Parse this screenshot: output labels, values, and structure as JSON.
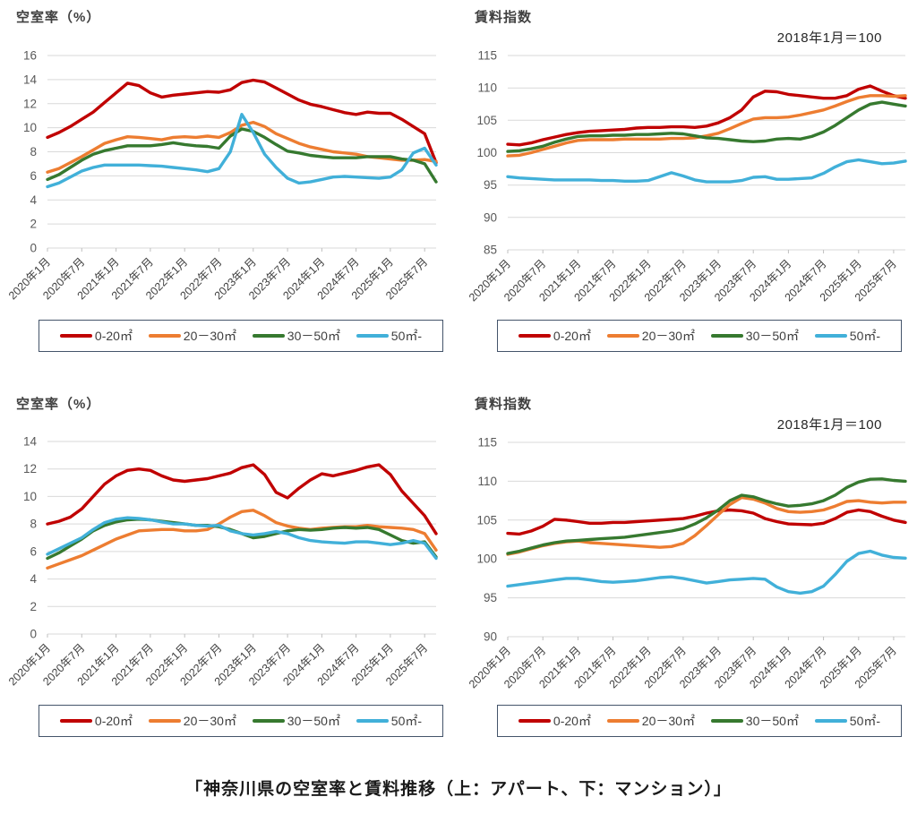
{
  "caption": "「神奈川県の空室率と賃料推移（上：アパート、下：マンション）」",
  "legend": {
    "items": [
      {
        "key": "size-0-20",
        "label": "0-20㎡",
        "color": "#c00000"
      },
      {
        "key": "size-20-30",
        "label": "20－30㎡",
        "color": "#ed7d31"
      },
      {
        "key": "size-30-50",
        "label": "30－50㎡",
        "color": "#36792f"
      },
      {
        "key": "size-50plus",
        "label": "50㎡-",
        "color": "#41b0d9"
      }
    ]
  },
  "x_tick_labels": [
    "2020年1月",
    "2020年7月",
    "2021年1月",
    "2021年7月",
    "2022年1月",
    "2022年7月",
    "2023年1月",
    "2023年7月",
    "2024年1月",
    "2024年7月",
    "2025年1月",
    "2025年7月"
  ],
  "x_sample_months": [
    "2020-01",
    "2020-03",
    "2020-05",
    "2020-07",
    "2020-09",
    "2020-11",
    "2021-01",
    "2021-03",
    "2021-05",
    "2021-07",
    "2021-09",
    "2021-11",
    "2022-01",
    "2022-03",
    "2022-05",
    "2022-07",
    "2022-09",
    "2022-11",
    "2023-01",
    "2023-03",
    "2023-05",
    "2023-07",
    "2023-09",
    "2023-11",
    "2024-01",
    "2024-03",
    "2024-05",
    "2024-07",
    "2024-09",
    "2024-11",
    "2025-01",
    "2025-03",
    "2025-05",
    "2025-07",
    "2025-09"
  ],
  "colors": {
    "grid": "#d9d9d9",
    "tick": "#bfbfbf",
    "y_label": "#595959",
    "x_label": "#404040"
  },
  "chart_data": [
    {
      "id": "apartment-vacancy",
      "panel": "top-left",
      "type": "line",
      "title": "空室率（%）",
      "annotation": "",
      "ylim": [
        0,
        16
      ],
      "yticks": [
        16,
        14,
        12,
        10,
        8,
        6,
        4,
        2,
        0
      ],
      "grid": true,
      "legend_position": "bottom",
      "series": [
        {
          "key": "size-0-20",
          "name": "0-20㎡",
          "color": "#c00000",
          "values": [
            9.2,
            9.6,
            10.1,
            10.7,
            11.3,
            12.1,
            12.9,
            13.7,
            13.5,
            12.9,
            12.55,
            12.7,
            12.8,
            12.9,
            13.0,
            12.95,
            13.15,
            13.75,
            13.95,
            13.8,
            13.3,
            12.8,
            12.3,
            11.95,
            11.75,
            11.5,
            11.25,
            11.1,
            11.3,
            11.2,
            11.2,
            10.7,
            10.1,
            9.5,
            7.1
          ]
        },
        {
          "key": "size-20-30",
          "name": "20－30㎡",
          "color": "#ed7d31",
          "values": [
            6.3,
            6.6,
            7.1,
            7.6,
            8.15,
            8.7,
            9.0,
            9.25,
            9.2,
            9.1,
            9.0,
            9.2,
            9.25,
            9.2,
            9.3,
            9.2,
            9.6,
            10.2,
            10.45,
            10.1,
            9.5,
            9.1,
            8.7,
            8.4,
            8.2,
            8.0,
            7.9,
            7.8,
            7.6,
            7.5,
            7.4,
            7.3,
            7.3,
            7.35,
            7.2
          ]
        },
        {
          "key": "size-30-50",
          "name": "30－50㎡",
          "color": "#36792f",
          "values": [
            5.7,
            6.1,
            6.7,
            7.3,
            7.8,
            8.1,
            8.3,
            8.5,
            8.5,
            8.5,
            8.6,
            8.75,
            8.6,
            8.5,
            8.45,
            8.3,
            9.3,
            9.9,
            9.7,
            9.2,
            8.6,
            8.05,
            7.9,
            7.7,
            7.6,
            7.5,
            7.5,
            7.5,
            7.6,
            7.6,
            7.6,
            7.4,
            7.3,
            7.0,
            5.5
          ]
        },
        {
          "key": "size-50plus",
          "name": "50㎡-",
          "color": "#41b0d9",
          "values": [
            5.1,
            5.4,
            5.9,
            6.4,
            6.7,
            6.9,
            6.9,
            6.9,
            6.9,
            6.85,
            6.8,
            6.7,
            6.6,
            6.5,
            6.35,
            6.6,
            8.0,
            11.1,
            9.6,
            7.8,
            6.7,
            5.8,
            5.4,
            5.5,
            5.7,
            5.9,
            5.95,
            5.9,
            5.85,
            5.8,
            5.9,
            6.5,
            7.9,
            8.3,
            6.9
          ]
        }
      ]
    },
    {
      "id": "apartment-rent",
      "panel": "top-right",
      "type": "line",
      "title": "賃料指数",
      "annotation": "2018年1月＝100",
      "ylim": [
        85,
        115
      ],
      "yticks": [
        115,
        110,
        105,
        100,
        95,
        90,
        85
      ],
      "grid": true,
      "legend_position": "bottom",
      "series": [
        {
          "key": "size-0-20",
          "name": "0-20㎡",
          "color": "#c00000",
          "values": [
            101.3,
            101.2,
            101.5,
            102.0,
            102.4,
            102.8,
            103.1,
            103.3,
            103.4,
            103.5,
            103.6,
            103.8,
            103.9,
            103.9,
            104.0,
            104.0,
            103.9,
            104.1,
            104.6,
            105.4,
            106.6,
            108.6,
            109.5,
            109.4,
            109.0,
            108.8,
            108.6,
            108.4,
            108.4,
            108.8,
            109.8,
            110.3,
            109.5,
            108.8,
            108.4
          ]
        },
        {
          "key": "size-20-30",
          "name": "20－30㎡",
          "color": "#ed7d31",
          "values": [
            99.5,
            99.6,
            100.0,
            100.5,
            101.0,
            101.5,
            101.9,
            102.0,
            102.0,
            102.0,
            102.1,
            102.1,
            102.1,
            102.1,
            102.2,
            102.2,
            102.3,
            102.6,
            103.0,
            103.7,
            104.5,
            105.2,
            105.4,
            105.4,
            105.5,
            105.8,
            106.2,
            106.6,
            107.2,
            107.9,
            108.5,
            108.8,
            108.8,
            108.7,
            108.8
          ]
        },
        {
          "key": "size-30-50",
          "name": "30－50㎡",
          "color": "#36792f",
          "values": [
            100.2,
            100.3,
            100.6,
            101.0,
            101.6,
            102.1,
            102.5,
            102.6,
            102.6,
            102.7,
            102.7,
            102.8,
            102.8,
            102.9,
            103.0,
            102.9,
            102.6,
            102.3,
            102.2,
            102.0,
            101.8,
            101.7,
            101.8,
            102.1,
            102.2,
            102.1,
            102.5,
            103.2,
            104.2,
            105.4,
            106.6,
            107.5,
            107.8,
            107.5,
            107.2
          ]
        },
        {
          "key": "size-50plus",
          "name": "50㎡-",
          "color": "#41b0d9",
          "values": [
            96.3,
            96.1,
            96.0,
            95.9,
            95.8,
            95.8,
            95.8,
            95.8,
            95.7,
            95.7,
            95.6,
            95.6,
            95.7,
            96.3,
            96.9,
            96.4,
            95.8,
            95.5,
            95.5,
            95.5,
            95.7,
            96.2,
            96.3,
            95.9,
            95.9,
            96.0,
            96.1,
            96.8,
            97.8,
            98.6,
            98.9,
            98.6,
            98.3,
            98.4,
            98.7
          ]
        }
      ]
    },
    {
      "id": "mansion-vacancy",
      "panel": "bottom-left",
      "type": "line",
      "title": "空室率（%）",
      "annotation": "",
      "ylim": [
        0,
        14
      ],
      "yticks": [
        14,
        12,
        10,
        8,
        6,
        4,
        2,
        0
      ],
      "grid": true,
      "legend_position": "bottom",
      "series": [
        {
          "key": "size-0-20",
          "name": "0-20㎡",
          "color": "#c00000",
          "values": [
            8.0,
            8.2,
            8.5,
            9.1,
            10.0,
            10.9,
            11.5,
            11.9,
            12.0,
            11.9,
            11.5,
            11.2,
            11.1,
            11.2,
            11.3,
            11.5,
            11.7,
            12.1,
            12.3,
            11.6,
            10.3,
            9.9,
            10.6,
            11.2,
            11.65,
            11.5,
            11.7,
            11.9,
            12.15,
            12.3,
            11.6,
            10.4,
            9.5,
            8.6,
            7.3
          ]
        },
        {
          "key": "size-20-30",
          "name": "20－30㎡",
          "color": "#ed7d31",
          "values": [
            4.8,
            5.1,
            5.4,
            5.7,
            6.1,
            6.5,
            6.9,
            7.2,
            7.5,
            7.55,
            7.6,
            7.6,
            7.5,
            7.5,
            7.6,
            8.0,
            8.5,
            8.9,
            9.0,
            8.6,
            8.1,
            7.85,
            7.7,
            7.6,
            7.7,
            7.75,
            7.8,
            7.8,
            7.9,
            7.8,
            7.75,
            7.7,
            7.6,
            7.3,
            6.1
          ]
        },
        {
          "key": "size-30-50",
          "name": "30－50㎡",
          "color": "#36792f",
          "values": [
            5.5,
            5.9,
            6.4,
            6.9,
            7.5,
            7.9,
            8.15,
            8.3,
            8.35,
            8.3,
            8.2,
            8.1,
            8.0,
            7.9,
            7.9,
            7.8,
            7.6,
            7.3,
            7.0,
            7.1,
            7.3,
            7.5,
            7.6,
            7.55,
            7.6,
            7.7,
            7.75,
            7.7,
            7.75,
            7.6,
            7.2,
            6.8,
            6.6,
            6.7,
            5.6
          ]
        },
        {
          "key": "size-50plus",
          "name": "50㎡-",
          "color": "#41b0d9",
          "values": [
            5.8,
            6.2,
            6.6,
            7.0,
            7.6,
            8.1,
            8.35,
            8.45,
            8.4,
            8.3,
            8.15,
            8.0,
            8.0,
            7.9,
            7.85,
            7.9,
            7.5,
            7.3,
            7.2,
            7.3,
            7.45,
            7.3,
            7.0,
            6.8,
            6.7,
            6.65,
            6.6,
            6.7,
            6.7,
            6.6,
            6.5,
            6.6,
            6.8,
            6.6,
            5.5
          ]
        }
      ]
    },
    {
      "id": "mansion-rent",
      "panel": "bottom-right",
      "type": "line",
      "title": "賃料指数",
      "annotation": "2018年1月＝100",
      "ylim": [
        90,
        115
      ],
      "yticks": [
        115,
        110,
        105,
        100,
        95,
        90
      ],
      "grid": true,
      "legend_position": "bottom",
      "series": [
        {
          "key": "size-0-20",
          "name": "0-20㎡",
          "color": "#c00000",
          "values": [
            103.3,
            103.2,
            103.6,
            104.2,
            105.1,
            105.0,
            104.8,
            104.6,
            104.6,
            104.7,
            104.7,
            104.8,
            104.9,
            105.0,
            105.1,
            105.2,
            105.5,
            105.9,
            106.2,
            106.3,
            106.2,
            105.9,
            105.2,
            104.8,
            104.5,
            104.45,
            104.4,
            104.6,
            105.2,
            106.0,
            106.3,
            106.1,
            105.5,
            105.0,
            104.7
          ]
        },
        {
          "key": "size-20-30",
          "name": "20－30㎡",
          "color": "#ed7d31",
          "values": [
            100.6,
            100.9,
            101.3,
            101.7,
            102.0,
            102.2,
            102.3,
            102.1,
            102.0,
            101.9,
            101.8,
            101.7,
            101.6,
            101.5,
            101.6,
            102.0,
            103.0,
            104.3,
            105.7,
            107.0,
            107.9,
            107.7,
            107.2,
            106.5,
            106.1,
            106.0,
            106.1,
            106.3,
            106.8,
            107.4,
            107.5,
            107.3,
            107.2,
            107.3,
            107.3
          ]
        },
        {
          "key": "size-30-50",
          "name": "30－50㎡",
          "color": "#36792f",
          "values": [
            100.7,
            101.0,
            101.4,
            101.8,
            102.1,
            102.3,
            102.4,
            102.5,
            102.6,
            102.7,
            102.8,
            103.0,
            103.2,
            103.4,
            103.6,
            103.9,
            104.5,
            105.3,
            106.3,
            107.5,
            108.2,
            108.0,
            107.5,
            107.1,
            106.8,
            106.9,
            107.1,
            107.5,
            108.2,
            109.2,
            109.9,
            110.25,
            110.3,
            110.1,
            110.0
          ]
        },
        {
          "key": "size-50plus",
          "name": "50㎡-",
          "color": "#41b0d9",
          "values": [
            96.5,
            96.7,
            96.9,
            97.1,
            97.3,
            97.5,
            97.5,
            97.3,
            97.1,
            97.0,
            97.1,
            97.2,
            97.4,
            97.6,
            97.7,
            97.5,
            97.2,
            96.9,
            97.1,
            97.3,
            97.4,
            97.5,
            97.4,
            96.4,
            95.8,
            95.6,
            95.8,
            96.5,
            98.0,
            99.7,
            100.7,
            101.0,
            100.5,
            100.2,
            100.1
          ]
        }
      ]
    }
  ]
}
